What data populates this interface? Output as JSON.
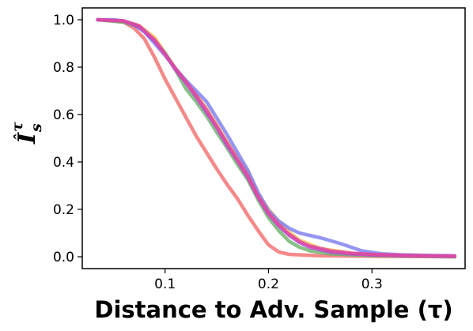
{
  "chart_data": {
    "type": "line",
    "title": "",
    "xlabel": "Distance to Adv. Sample (τ)",
    "ylabel": {
      "base": "I",
      "hat": "ˆ",
      "sub": "s",
      "sup": "τ"
    },
    "xlim": [
      0.02,
      0.39
    ],
    "ylim": [
      -0.05,
      1.05
    ],
    "xticks": [
      "0.1",
      "0.2",
      "0.3"
    ],
    "xtick_values": [
      0.1,
      0.2,
      0.3
    ],
    "yticks": [
      "0.0",
      "0.2",
      "0.4",
      "0.6",
      "0.8",
      "1.0"
    ],
    "ytick_values": [
      0.0,
      0.2,
      0.4,
      0.6,
      0.8,
      1.0
    ],
    "grid": false,
    "legend": "none",
    "series": [
      {
        "color": "#f4c95d",
        "points": [
          [
            0.035,
            1.0
          ],
          [
            0.06,
            0.995
          ],
          [
            0.075,
            0.975
          ],
          [
            0.09,
            0.925
          ],
          [
            0.1,
            0.86
          ],
          [
            0.11,
            0.795
          ],
          [
            0.12,
            0.74
          ],
          [
            0.13,
            0.685
          ],
          [
            0.14,
            0.625
          ],
          [
            0.15,
            0.555
          ],
          [
            0.16,
            0.485
          ],
          [
            0.17,
            0.42
          ],
          [
            0.18,
            0.36
          ],
          [
            0.19,
            0.265
          ],
          [
            0.2,
            0.2
          ],
          [
            0.21,
            0.15
          ],
          [
            0.22,
            0.105
          ],
          [
            0.23,
            0.07
          ],
          [
            0.25,
            0.035
          ],
          [
            0.28,
            0.015
          ],
          [
            0.3,
            0.008
          ],
          [
            0.33,
            0.004
          ],
          [
            0.38,
            0.002
          ]
        ]
      },
      {
        "color": "#f26b6b",
        "points": [
          [
            0.035,
            1.0
          ],
          [
            0.05,
            0.995
          ],
          [
            0.06,
            0.99
          ],
          [
            0.07,
            0.965
          ],
          [
            0.08,
            0.92
          ],
          [
            0.09,
            0.84
          ],
          [
            0.1,
            0.75
          ],
          [
            0.11,
            0.67
          ],
          [
            0.12,
            0.59
          ],
          [
            0.13,
            0.51
          ],
          [
            0.14,
            0.44
          ],
          [
            0.15,
            0.37
          ],
          [
            0.16,
            0.305
          ],
          [
            0.17,
            0.245
          ],
          [
            0.18,
            0.175
          ],
          [
            0.19,
            0.11
          ],
          [
            0.2,
            0.05
          ],
          [
            0.21,
            0.02
          ],
          [
            0.22,
            0.01
          ],
          [
            0.25,
            0.004
          ],
          [
            0.3,
            0.002
          ],
          [
            0.38,
            0.0
          ]
        ]
      },
      {
        "color": "#6ab06a",
        "points": [
          [
            0.035,
            1.0
          ],
          [
            0.06,
            0.99
          ],
          [
            0.075,
            0.97
          ],
          [
            0.09,
            0.91
          ],
          [
            0.1,
            0.86
          ],
          [
            0.11,
            0.79
          ],
          [
            0.12,
            0.71
          ],
          [
            0.13,
            0.655
          ],
          [
            0.14,
            0.595
          ],
          [
            0.15,
            0.525
          ],
          [
            0.16,
            0.46
          ],
          [
            0.17,
            0.39
          ],
          [
            0.18,
            0.325
          ],
          [
            0.19,
            0.24
          ],
          [
            0.2,
            0.165
          ],
          [
            0.21,
            0.11
          ],
          [
            0.22,
            0.065
          ],
          [
            0.23,
            0.04
          ],
          [
            0.24,
            0.025
          ],
          [
            0.26,
            0.012
          ],
          [
            0.3,
            0.005
          ],
          [
            0.35,
            0.002
          ],
          [
            0.38,
            0.0
          ]
        ]
      },
      {
        "color": "#7a7af0",
        "points": [
          [
            0.035,
            1.0
          ],
          [
            0.05,
            1.0
          ],
          [
            0.06,
            0.995
          ],
          [
            0.07,
            0.98
          ],
          [
            0.08,
            0.95
          ],
          [
            0.09,
            0.9
          ],
          [
            0.1,
            0.85
          ],
          [
            0.11,
            0.795
          ],
          [
            0.12,
            0.745
          ],
          [
            0.13,
            0.7
          ],
          [
            0.14,
            0.655
          ],
          [
            0.15,
            0.585
          ],
          [
            0.16,
            0.515
          ],
          [
            0.17,
            0.44
          ],
          [
            0.18,
            0.365
          ],
          [
            0.19,
            0.27
          ],
          [
            0.2,
            0.195
          ],
          [
            0.21,
            0.15
          ],
          [
            0.22,
            0.12
          ],
          [
            0.23,
            0.1
          ],
          [
            0.25,
            0.08
          ],
          [
            0.27,
            0.055
          ],
          [
            0.29,
            0.025
          ],
          [
            0.31,
            0.012
          ],
          [
            0.33,
            0.008
          ],
          [
            0.36,
            0.005
          ],
          [
            0.38,
            0.004
          ]
        ]
      },
      {
        "color": "#b247e0",
        "points": [
          [
            0.035,
            1.0
          ],
          [
            0.06,
            0.995
          ],
          [
            0.075,
            0.97
          ],
          [
            0.09,
            0.91
          ],
          [
            0.1,
            0.855
          ],
          [
            0.11,
            0.79
          ],
          [
            0.12,
            0.735
          ],
          [
            0.13,
            0.675
          ],
          [
            0.14,
            0.61
          ],
          [
            0.15,
            0.545
          ],
          [
            0.16,
            0.47
          ],
          [
            0.17,
            0.405
          ],
          [
            0.18,
            0.335
          ],
          [
            0.19,
            0.25
          ],
          [
            0.2,
            0.18
          ],
          [
            0.21,
            0.13
          ],
          [
            0.22,
            0.09
          ],
          [
            0.23,
            0.06
          ],
          [
            0.24,
            0.04
          ],
          [
            0.26,
            0.02
          ],
          [
            0.28,
            0.012
          ],
          [
            0.3,
            0.008
          ],
          [
            0.34,
            0.004
          ],
          [
            0.38,
            0.002
          ]
        ]
      },
      {
        "color": "#e3489a",
        "points": [
          [
            0.035,
            1.0
          ],
          [
            0.06,
            0.995
          ],
          [
            0.075,
            0.975
          ],
          [
            0.09,
            0.915
          ],
          [
            0.1,
            0.855
          ],
          [
            0.11,
            0.795
          ],
          [
            0.12,
            0.74
          ],
          [
            0.13,
            0.68
          ],
          [
            0.14,
            0.62
          ],
          [
            0.15,
            0.55
          ],
          [
            0.16,
            0.48
          ],
          [
            0.17,
            0.41
          ],
          [
            0.18,
            0.34
          ],
          [
            0.19,
            0.255
          ],
          [
            0.2,
            0.185
          ],
          [
            0.21,
            0.135
          ],
          [
            0.22,
            0.095
          ],
          [
            0.23,
            0.065
          ],
          [
            0.24,
            0.045
          ],
          [
            0.26,
            0.025
          ],
          [
            0.28,
            0.015
          ],
          [
            0.3,
            0.01
          ],
          [
            0.34,
            0.005
          ],
          [
            0.38,
            0.003
          ]
        ]
      }
    ]
  }
}
